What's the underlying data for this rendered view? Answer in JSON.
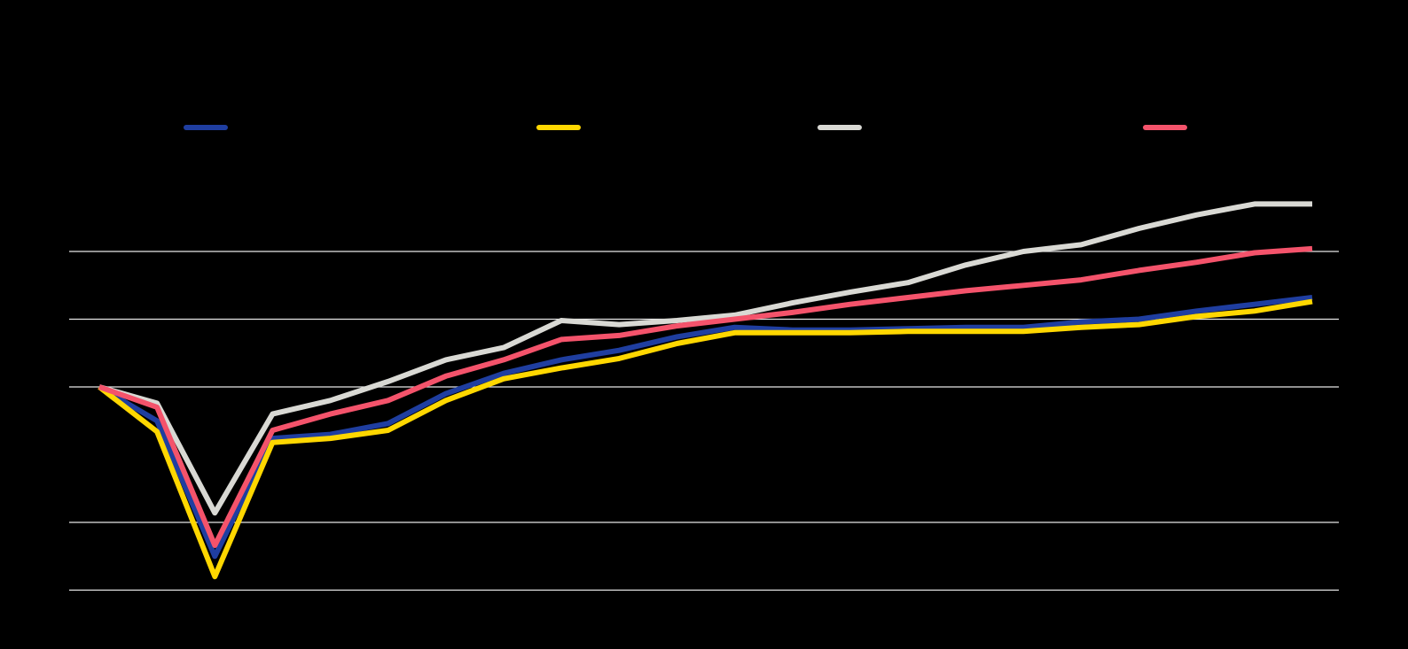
{
  "chart_data": {
    "type": "line",
    "title": "",
    "xlabel": "",
    "ylabel": "",
    "x": [
      1,
      2,
      3,
      4,
      5,
      6,
      7,
      8,
      9,
      10,
      11,
      12,
      13,
      14,
      15,
      16,
      17,
      18,
      19,
      20,
      21,
      22
    ],
    "ylim": [
      -2,
      1.5
    ],
    "grid_values": [
      -1.5,
      -1,
      0,
      0.5,
      1
    ],
    "grid": true,
    "legend_position": "top",
    "colors": {
      "background": "#000000",
      "grid": "#e6e6e6"
    },
    "series": [
      {
        "color": "#1f3ea0",
        "values": [
          0,
          -0.25,
          -1.25,
          -0.38,
          -0.35,
          -0.27,
          -0.05,
          0.1,
          0.2,
          0.27,
          0.37,
          0.44,
          0.42,
          0.42,
          0.43,
          0.44,
          0.44,
          0.48,
          0.5,
          0.56,
          0.61,
          0.66
        ]
      },
      {
        "color": "#ffd700",
        "values": [
          0,
          -0.33,
          -1.4,
          -0.41,
          -0.38,
          -0.32,
          -0.1,
          0.06,
          0.14,
          0.21,
          0.32,
          0.4,
          0.4,
          0.4,
          0.41,
          0.41,
          0.41,
          0.44,
          0.46,
          0.52,
          0.56,
          0.63
        ]
      },
      {
        "color": "#d9d9d4",
        "values": [
          0,
          -0.12,
          -0.93,
          -0.2,
          -0.1,
          0.04,
          0.2,
          0.29,
          0.49,
          0.46,
          0.49,
          0.53,
          0.62,
          0.7,
          0.77,
          0.9,
          1.0,
          1.05,
          1.17,
          1.27,
          1.35,
          1.35
        ]
      },
      {
        "color": "#f4536b",
        "values": [
          0,
          -0.15,
          -1.17,
          -0.32,
          -0.2,
          -0.1,
          0.08,
          0.2,
          0.35,
          0.38,
          0.45,
          0.5,
          0.55,
          0.61,
          0.66,
          0.71,
          0.75,
          0.79,
          0.86,
          0.92,
          0.99,
          1.02
        ]
      }
    ]
  }
}
